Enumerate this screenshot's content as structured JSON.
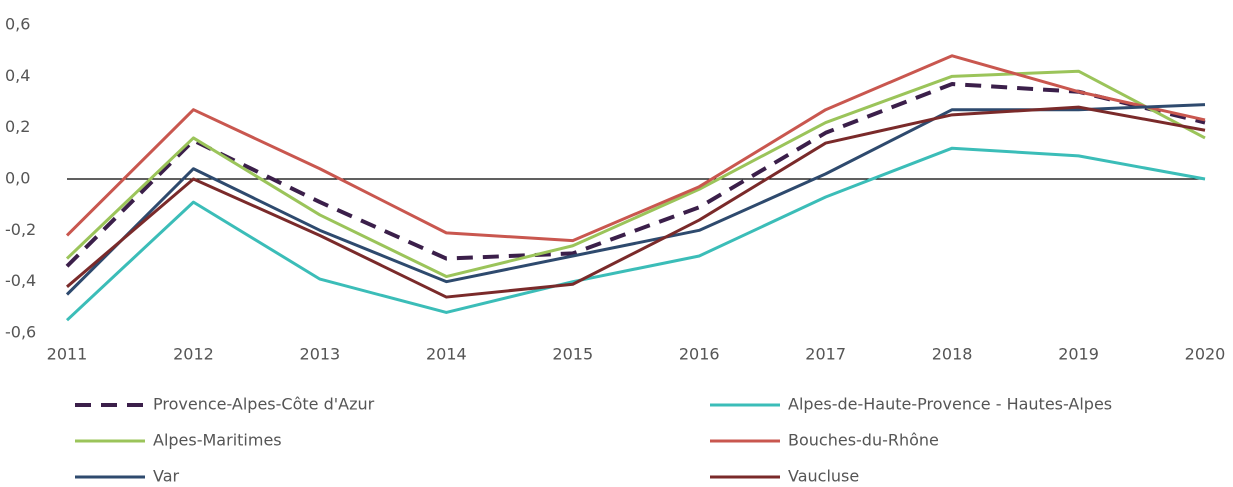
{
  "chart_data": {
    "type": "line",
    "categories": [
      "2011",
      "2012",
      "2013",
      "2014",
      "2015",
      "2016",
      "2017",
      "2018",
      "2019",
      "2020"
    ],
    "series": [
      {
        "name": "Provence-Alpes-Côte d'Azur",
        "color": "#3b1f4a",
        "style": "dashed",
        "values": [
          -0.34,
          0.15,
          -0.09,
          -0.31,
          -0.29,
          -0.11,
          0.18,
          0.37,
          0.34,
          0.22
        ]
      },
      {
        "name": "Alpes-de-Haute-Provence - Hautes-Alpes",
        "color": "#3bbdb8",
        "values": [
          -0.55,
          -0.09,
          -0.39,
          -0.52,
          -0.4,
          -0.3,
          -0.07,
          0.12,
          0.09,
          0.0
        ]
      },
      {
        "name": "Alpes-Maritimes",
        "color": "#9bc45a",
        "values": [
          -0.31,
          0.16,
          -0.14,
          -0.38,
          -0.26,
          -0.04,
          0.22,
          0.4,
          0.42,
          0.16
        ]
      },
      {
        "name": "Bouches-du-Rhône",
        "color": "#c9574f",
        "values": [
          -0.22,
          0.27,
          0.04,
          -0.21,
          -0.24,
          -0.03,
          0.27,
          0.48,
          0.34,
          0.23
        ]
      },
      {
        "name": "Var",
        "color": "#2e4a6e",
        "values": [
          -0.45,
          0.04,
          -0.2,
          -0.4,
          -0.3,
          -0.2,
          0.02,
          0.27,
          0.27,
          0.29
        ]
      },
      {
        "name": "Vaucluse",
        "color": "#7a2a2a",
        "values": [
          -0.42,
          0.0,
          -0.22,
          -0.46,
          -0.41,
          -0.16,
          0.14,
          0.25,
          0.28,
          0.19
        ]
      }
    ],
    "ylim": [
      -0.6,
      0.6
    ],
    "yticks": [
      {
        "value": -0.6,
        "label": "-0,6"
      },
      {
        "value": -0.4,
        "label": "-0,4"
      },
      {
        "value": -0.2,
        "label": "-0,2"
      },
      {
        "value": 0,
        "label": "0,0"
      },
      {
        "value": 0.2,
        "label": "0,2"
      },
      {
        "value": 0.4,
        "label": "0,4"
      },
      {
        "value": 0.6,
        "label": "0,6"
      }
    ],
    "grid": false,
    "zero_line": true,
    "legend": "bottom"
  }
}
